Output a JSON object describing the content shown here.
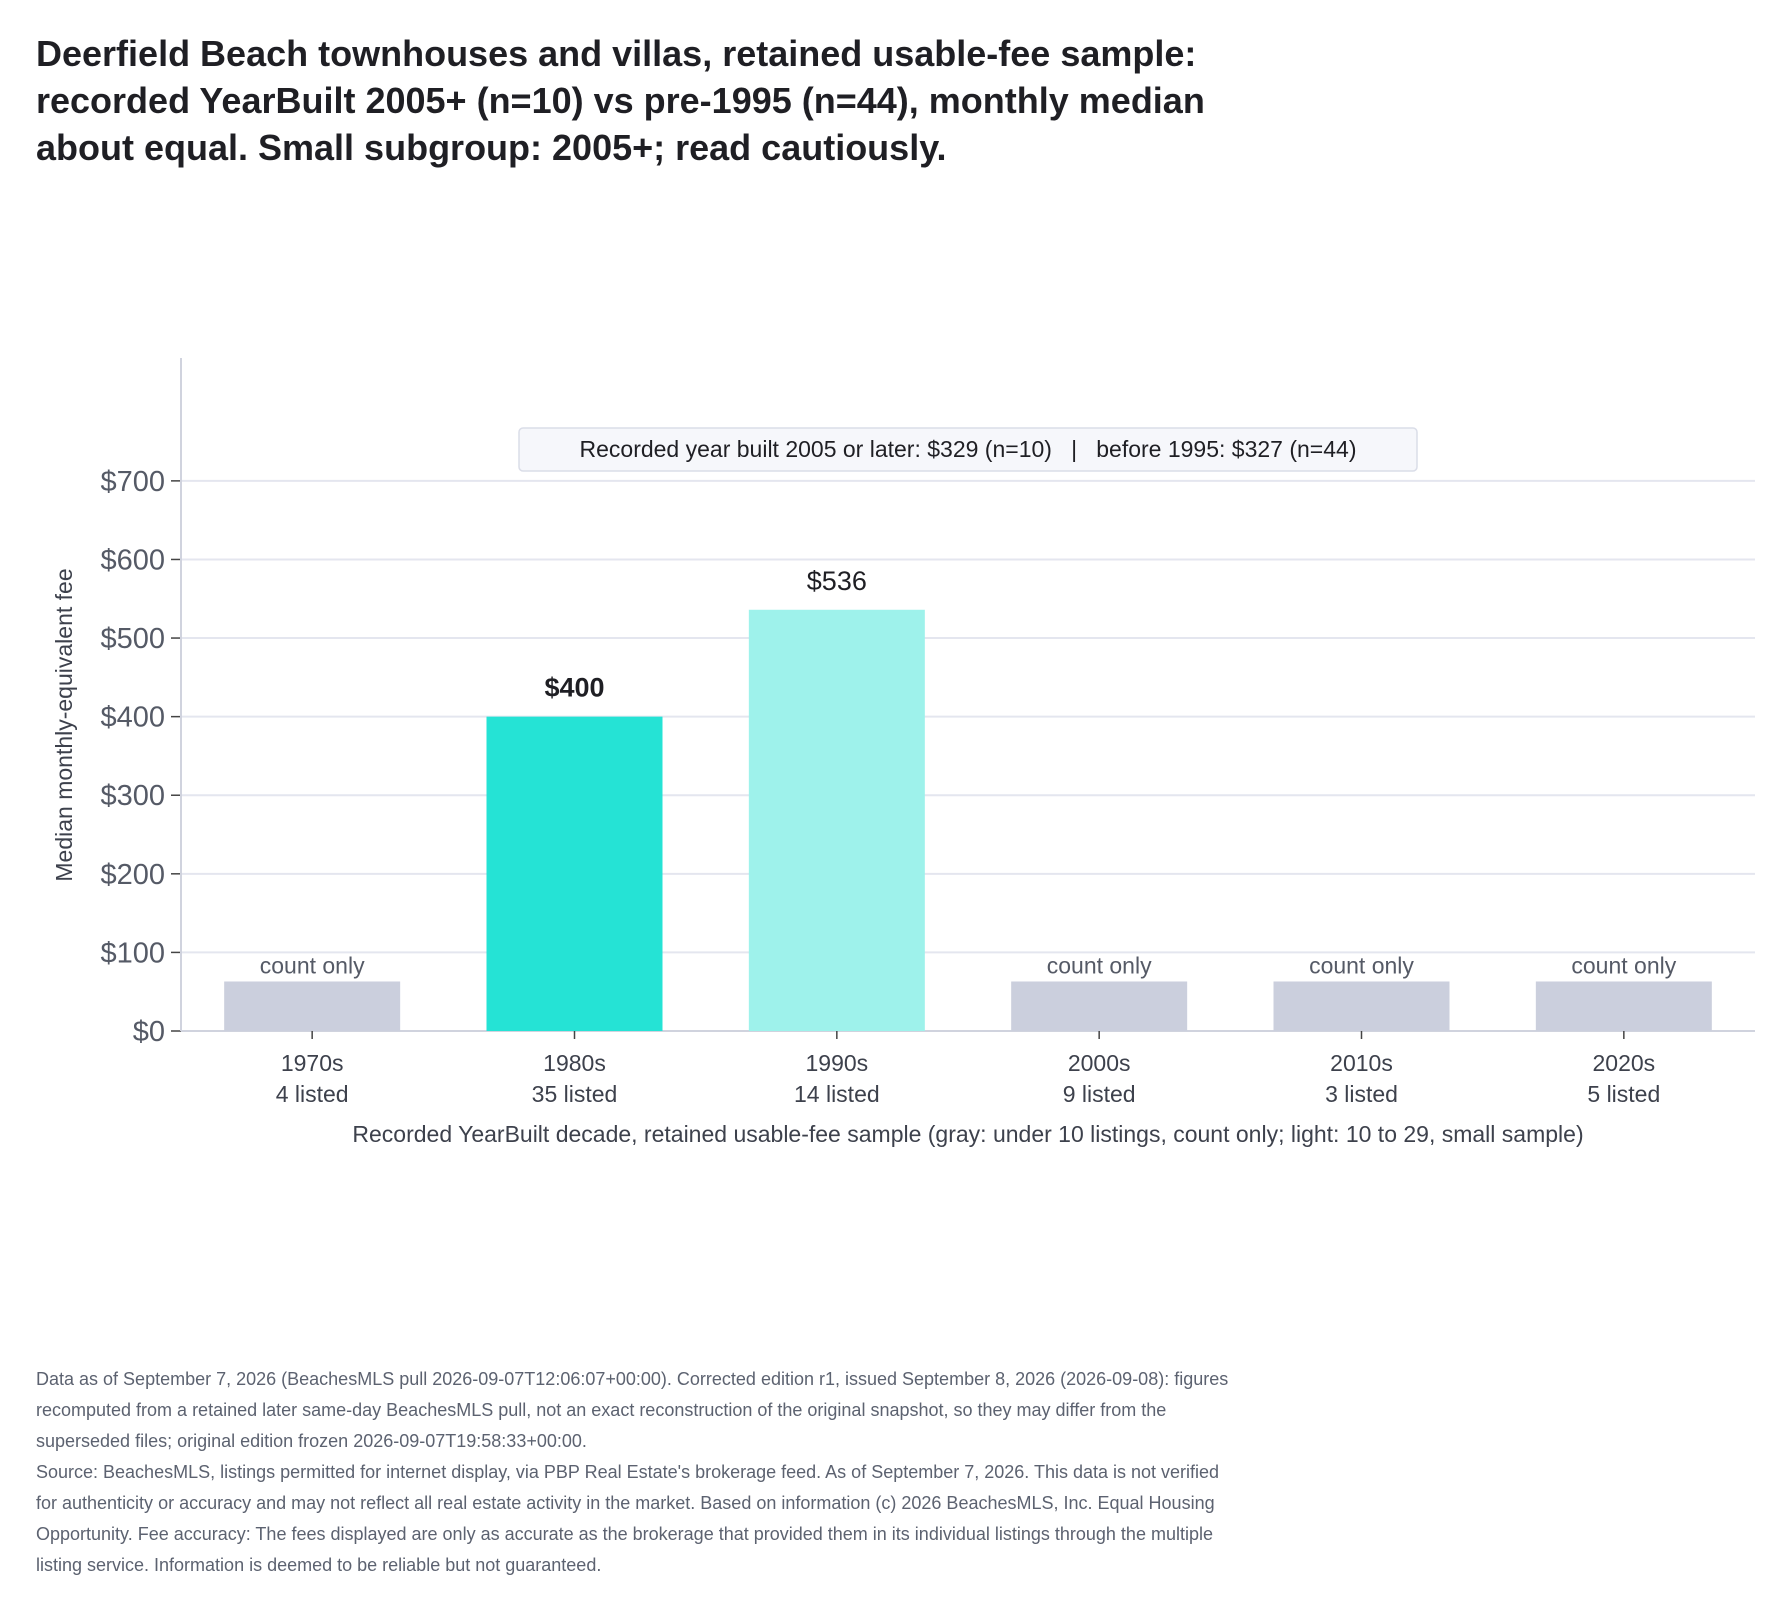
{
  "title_lines": [
    "Deerfield Beach townhouses and villas, retained usable-fee sample:",
    "recorded YearBuilt 2005+ (n=10) vs pre-1995 (n=44), monthly median",
    "about equal. Small subgroup: 2005+; read cautiously."
  ],
  "callout": "Recorded year built 2005 or later: $329 (n=10)   |   before 1995: $327 (n=44)",
  "colors": {
    "primary": "#25e3d5",
    "light": "#9ef2eb",
    "gray": "#cbcfdd",
    "grid": "#e4e6ef",
    "axis": "#d0d3de"
  },
  "chart_data": {
    "type": "bar",
    "title": "Deerfield Beach townhouses and villas, retained usable-fee sample: recorded YearBuilt 2005+ (n=10) vs pre-1995 (n=44), monthly median about equal. Small subgroup: 2005+; read cautiously.",
    "categories": [
      "1970s",
      "1980s",
      "1990s",
      "2000s",
      "2010s",
      "2020s"
    ],
    "counts_labels": [
      "4 listed",
      "35 listed",
      "14 listed",
      "9 listed",
      "3 listed",
      "5 listed"
    ],
    "values": [
      null,
      400,
      536,
      null,
      null,
      null
    ],
    "value_labels": [
      "count only",
      "$400",
      "$536",
      "count only",
      "count only",
      "count only"
    ],
    "count_only_stub_value": 63,
    "tiers": [
      "gray",
      "primary",
      "light",
      "gray",
      "gray",
      "gray"
    ],
    "xlabel": "Recorded YearBuilt decade, retained usable-fee sample (gray: under 10 listings, count only; light: 10 to 29, small sample)",
    "ylabel": "Median monthly-equivalent fee",
    "ylim": [
      0,
      780
    ],
    "yticks": [
      0,
      100,
      200,
      300,
      400,
      500,
      600,
      700
    ],
    "ytick_labels": [
      "$0",
      "$100",
      "$200",
      "$300",
      "$400",
      "$500",
      "$600",
      "$700"
    ],
    "grid": true,
    "legend": "none"
  },
  "footer_lines": [
    "Data as of September 7, 2026 (BeachesMLS pull 2026-09-07T12:06:07+00:00). Corrected edition r1, issued September 8, 2026 (2026-09-08): figures",
    "recomputed from a retained later same-day BeachesMLS pull, not an exact reconstruction of the original snapshot, so they may differ from the",
    "superseded files; original edition frozen 2026-09-07T19:58:33+00:00.",
    "Source: BeachesMLS, listings permitted for internet display, via PBP Real Estate's brokerage feed. As of September 7, 2026. This data is not verified",
    "for authenticity or accuracy and may not reflect all real estate activity in the market. Based on information (c) 2026 BeachesMLS, Inc. Equal Housing",
    "Opportunity. Fee accuracy: The fees displayed are only as accurate as the brokerage that provided them in its individual listings through the multiple",
    "listing service. Information is deemed to be reliable but not guaranteed."
  ]
}
